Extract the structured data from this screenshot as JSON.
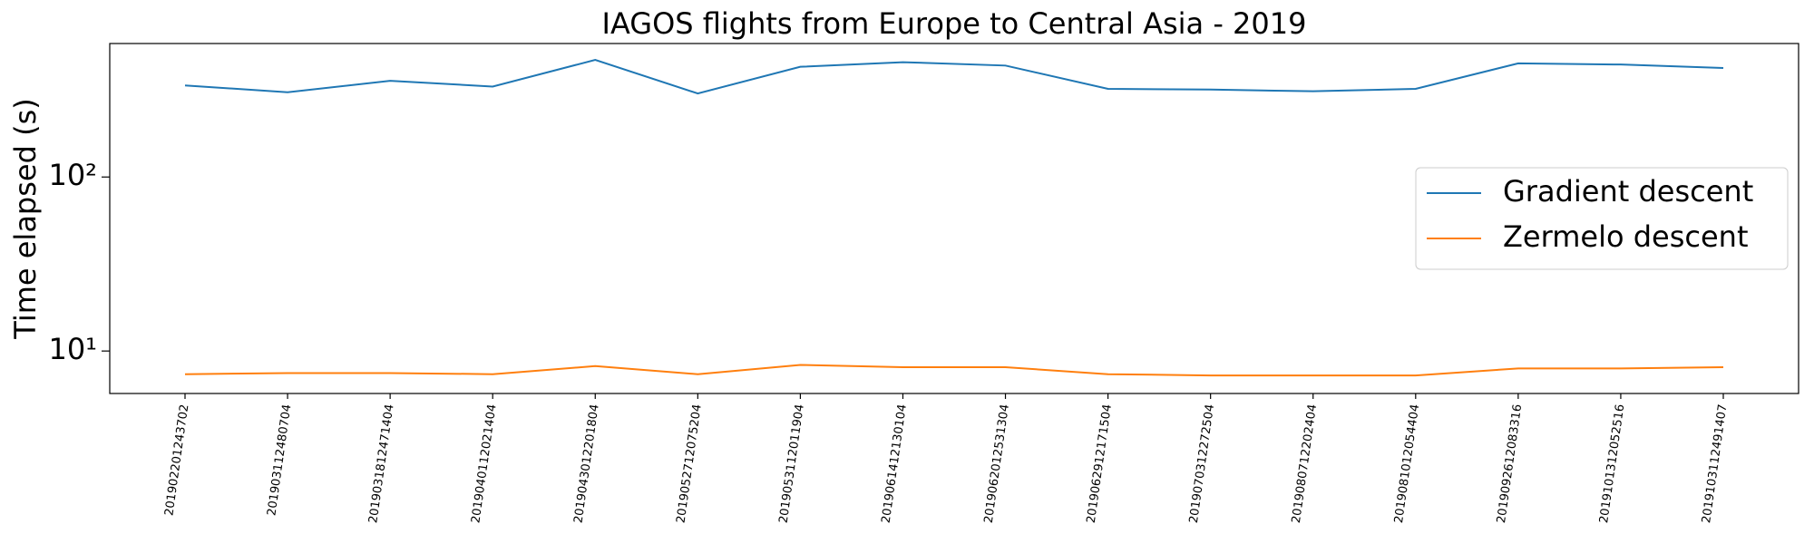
{
  "chart_data": {
    "type": "line",
    "title": "IAGOS flights from Europe to Central Asia - 2019",
    "y_label": "Time elapsed (s)",
    "categories": [
      "201902201243702",
      "201903112480704",
      "201903181247140​4",
      "201904011202140​4",
      "201904301220180​4",
      "201905271207520​4",
      "201905311201190​4",
      "201906141213010​4",
      "201906201253130​4",
      "201906291217150​4",
      "201907031227250​4",
      "201908071220240​4",
      "201908101205440​4",
      "201909261208331​6",
      "201910131205251​6",
      "201910311249140​7"
    ],
    "series": [
      {
        "name": "Gradient descent",
        "color": "#1f77b4",
        "values": [
          336,
          307,
          357,
          331,
          471,
          302,
          430,
          457,
          437,
          321,
          318,
          311,
          321,
          450,
          443,
          423
        ]
      },
      {
        "name": "Zermelo descent",
        "color": "#ff7f0e",
        "values": [
          7.36,
          7.47,
          7.47,
          7.36,
          8.19,
          7.36,
          8.32,
          8.07,
          8.07,
          7.36,
          7.24,
          7.24,
          7.24,
          7.94,
          7.94,
          8.07
        ]
      }
    ],
    "ylim": [
      5.7,
      585
    ],
    "log_y": true,
    "yticks": [
      {
        "value": 10,
        "label": "10¹"
      },
      {
        "value": 100,
        "label": "10²"
      }
    ],
    "legend": "center right"
  }
}
